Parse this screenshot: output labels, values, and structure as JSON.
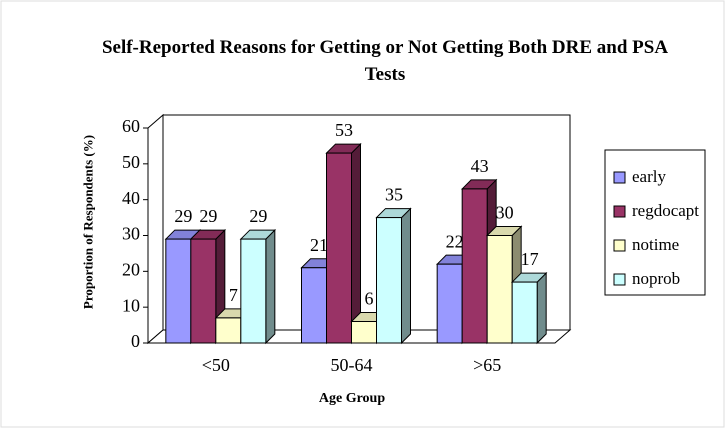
{
  "chart_data": {
    "type": "bar3d",
    "title": "Self-Reported Reasons for Getting or Not Getting Both DRE and PSA Tests",
    "x_label": "Age Group",
    "y_label": "Proportion of Respondents (%)",
    "categories": [
      "<50",
      "50-64",
      ">65"
    ],
    "series": [
      {
        "name": "early",
        "color": "#9999ff",
        "values": [
          29,
          21,
          22
        ]
      },
      {
        "name": "regdocapt",
        "color": "#993366",
        "values": [
          29,
          53,
          43
        ]
      },
      {
        "name": "notime",
        "color": "#ffffcc",
        "values": [
          7,
          6,
          30
        ]
      },
      {
        "name": "noprob",
        "color": "#ccffff",
        "values": [
          29,
          35,
          17
        ]
      }
    ],
    "ylim": [
      0,
      60
    ],
    "yticks": [
      0,
      10,
      20,
      30,
      40,
      50,
      60
    ],
    "legend": "right"
  }
}
